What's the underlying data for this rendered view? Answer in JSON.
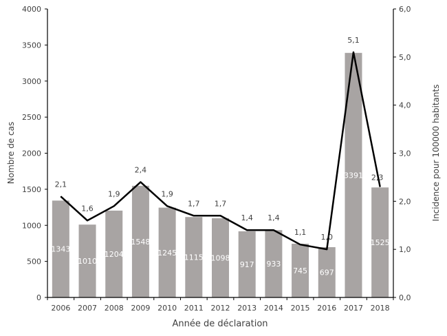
{
  "chart_data": {
    "type": "bar+line",
    "categories": [
      "2006",
      "2007",
      "2008",
      "2009",
      "2010",
      "2011",
      "2012",
      "2013",
      "2014",
      "2015",
      "2016",
      "2017",
      "2018"
    ],
    "series": [
      {
        "type": "bar",
        "axis": "left",
        "values": [
          1343,
          1010,
          1204,
          1548,
          1245,
          1115,
          1098,
          917,
          933,
          745,
          697,
          3391,
          1525
        ],
        "labels": [
          "1343",
          "1010",
          "1204",
          "1548",
          "1245",
          "1115",
          "1098",
          "917",
          "933",
          "745",
          "697",
          "3391",
          "1525"
        ]
      },
      {
        "type": "line",
        "axis": "right",
        "values": [
          2.1,
          1.6,
          1.9,
          2.4,
          1.9,
          1.7,
          1.7,
          1.4,
          1.4,
          1.1,
          1.0,
          5.1,
          2.3
        ],
        "labels": [
          "2,1",
          "1,6",
          "1,9",
          "2,4",
          "1,9",
          "1,7",
          "1,7",
          "1,4",
          "1,4",
          "1,1",
          "1,0",
          "5,1",
          "2,3"
        ]
      }
    ],
    "xlabel": "Année de déclaration",
    "ylabel": "Nombre de cas",
    "y2label": "Incidence pour 100000 habitants",
    "ylim": [
      0,
      4000
    ],
    "y2lim": [
      0,
      6
    ],
    "yticks": [
      "0",
      "500",
      "1000",
      "1500",
      "2000",
      "2500",
      "3000",
      "3500",
      "4000"
    ],
    "y2ticks": [
      "0,0",
      "1,0",
      "2,0",
      "3,0",
      "4,0",
      "5,0",
      "6,0"
    ],
    "grid": false,
    "legend": "none",
    "colors": {
      "bar": "#a8a4a3",
      "line": "#000000",
      "bar_label": "#ffffff",
      "text": "#404040"
    }
  }
}
